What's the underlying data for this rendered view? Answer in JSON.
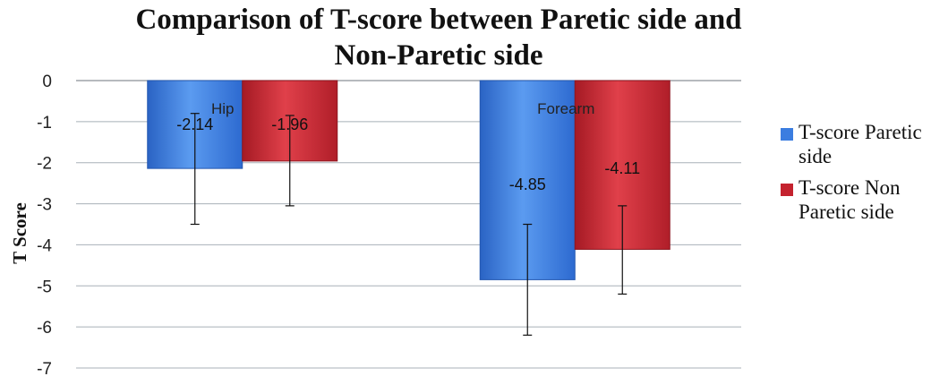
{
  "chart_data": {
    "type": "bar",
    "title": "Comparison of T-score between Paretic side and Non-Paretic side",
    "title_lines": [
      "Comparison of T-score between Paretic side and",
      "Non-Paretic side"
    ],
    "xlabel": "",
    "ylabel": "T Score",
    "ylim": [
      -7,
      0
    ],
    "yticks": [
      0,
      -1,
      -2,
      -3,
      -4,
      -5,
      -6,
      -7
    ],
    "categories": [
      "Hip",
      "Forearm"
    ],
    "series": [
      {
        "name": "T-score Paretic side",
        "values": [
          -2.14,
          -4.85
        ],
        "labels": [
          "-2.14",
          "-4.85"
        ],
        "error_low": [
          -3.5,
          -6.2
        ],
        "error_high": [
          -0.8,
          -3.5
        ],
        "color": "#3b7de0"
      },
      {
        "name": "T-score Non Paretic side",
        "values": [
          -1.96,
          -4.11
        ],
        "labels": [
          "-1.96",
          "-4.11"
        ],
        "error_low": [
          -3.05,
          -5.2
        ],
        "error_high": [
          -0.85,
          -3.05
        ],
        "color": "#c4222e"
      }
    ],
    "grid": true,
    "legend_position": "right"
  }
}
